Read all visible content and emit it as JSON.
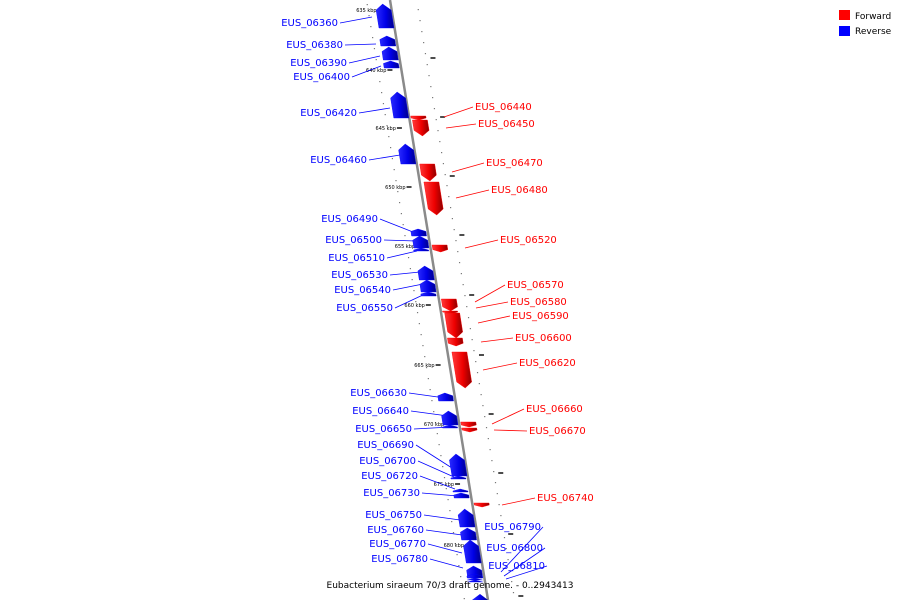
{
  "legend": {
    "forward": {
      "label": "Forward",
      "color": "#ff0000"
    },
    "reverse": {
      "label": "Reverse",
      "color": "#0000ff"
    }
  },
  "caption": "Eubacterium siraeum 70/3 draft genome. - 0..2943413",
  "ticks": [
    {
      "label": "635 kbp"
    },
    {
      "label": "640 kbp"
    },
    {
      "label": "645 kbp"
    },
    {
      "label": "650 kbp"
    },
    {
      "label": "655 kbp"
    },
    {
      "label": "660 kbp"
    },
    {
      "label": "665 kbp"
    },
    {
      "label": "670 kbp"
    },
    {
      "label": "675 kbp"
    },
    {
      "label": "680 kbp"
    }
  ],
  "genes": [
    {
      "name": "EUS_06360",
      "strand": "reverse"
    },
    {
      "name": "EUS_06380",
      "strand": "reverse"
    },
    {
      "name": "EUS_06390",
      "strand": "reverse"
    },
    {
      "name": "EUS_06400",
      "strand": "reverse"
    },
    {
      "name": "EUS_06420",
      "strand": "reverse"
    },
    {
      "name": "EUS_06460",
      "strand": "reverse"
    },
    {
      "name": "EUS_06490",
      "strand": "reverse"
    },
    {
      "name": "EUS_06500",
      "strand": "reverse"
    },
    {
      "name": "EUS_06510",
      "strand": "reverse"
    },
    {
      "name": "EUS_06530",
      "strand": "reverse"
    },
    {
      "name": "EUS_06540",
      "strand": "reverse"
    },
    {
      "name": "EUS_06550",
      "strand": "reverse"
    },
    {
      "name": "EUS_06630",
      "strand": "reverse"
    },
    {
      "name": "EUS_06640",
      "strand": "reverse"
    },
    {
      "name": "EUS_06650",
      "strand": "reverse"
    },
    {
      "name": "EUS_06690",
      "strand": "reverse"
    },
    {
      "name": "EUS_06700",
      "strand": "reverse"
    },
    {
      "name": "EUS_06720",
      "strand": "reverse"
    },
    {
      "name": "EUS_06730",
      "strand": "reverse"
    },
    {
      "name": "EUS_06750",
      "strand": "reverse"
    },
    {
      "name": "EUS_06760",
      "strand": "reverse"
    },
    {
      "name": "EUS_06770",
      "strand": "reverse"
    },
    {
      "name": "EUS_06780",
      "strand": "reverse"
    },
    {
      "name": "EUS_06440",
      "strand": "forward"
    },
    {
      "name": "EUS_06450",
      "strand": "forward"
    },
    {
      "name": "EUS_06470",
      "strand": "forward"
    },
    {
      "name": "EUS_06480",
      "strand": "forward"
    },
    {
      "name": "EUS_06520",
      "strand": "forward"
    },
    {
      "name": "EUS_06570",
      "strand": "forward"
    },
    {
      "name": "EUS_06580",
      "strand": "forward"
    },
    {
      "name": "EUS_06590",
      "strand": "forward"
    },
    {
      "name": "EUS_06600",
      "strand": "forward"
    },
    {
      "name": "EUS_06620",
      "strand": "forward"
    },
    {
      "name": "EUS_06660",
      "strand": "forward"
    },
    {
      "name": "EUS_06670",
      "strand": "forward"
    },
    {
      "name": "EUS_06740",
      "strand": "forward"
    },
    {
      "name": "EUS_06790",
      "strand": "reverse"
    },
    {
      "name": "EUS_06800",
      "strand": "reverse"
    },
    {
      "name": "EUS_06810",
      "strand": "reverse"
    }
  ]
}
